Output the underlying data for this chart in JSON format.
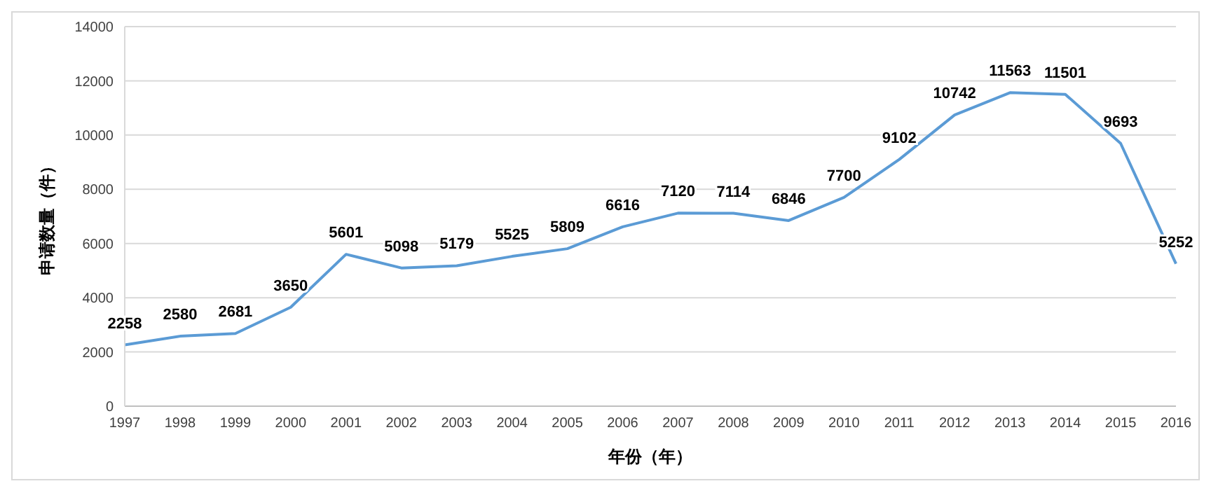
{
  "chart_data": {
    "type": "line",
    "xlabel": "年份（年）",
    "ylabel": "申请数量（件）",
    "categories": [
      "1997",
      "1998",
      "1999",
      "2000",
      "2001",
      "2002",
      "2003",
      "2004",
      "2005",
      "2006",
      "2007",
      "2008",
      "2009",
      "2010",
      "2011",
      "2012",
      "2013",
      "2014",
      "2015",
      "2016"
    ],
    "series": [
      {
        "color": "#5b9bd5",
        "values": [
          2258,
          2580,
          2681,
          3650,
          5601,
          5098,
          5179,
          5525,
          5809,
          6616,
          7120,
          7114,
          6846,
          7700,
          9102,
          10742,
          11563,
          11501,
          9693,
          5252
        ]
      }
    ],
    "ylim": [
      0,
      14000
    ],
    "yticks": [
      0,
      2000,
      4000,
      6000,
      8000,
      10000,
      12000,
      14000
    ],
    "grid": "y",
    "data_labels": true,
    "marker": "none",
    "line_style": "solid",
    "legend": false
  }
}
